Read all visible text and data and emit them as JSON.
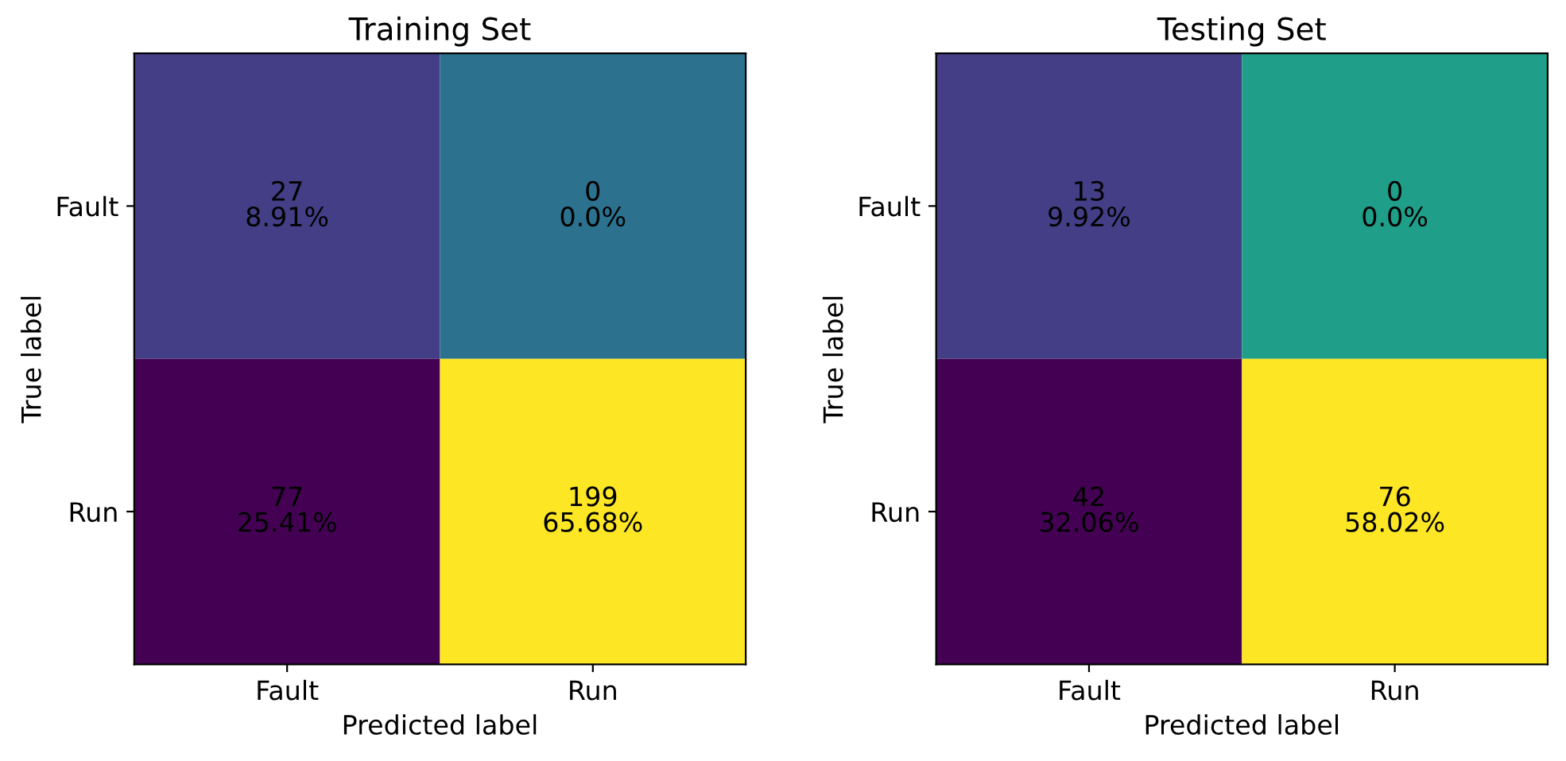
{
  "chart_data": [
    {
      "type": "heatmap",
      "title": "Training Set",
      "xlabel": "Predicted label",
      "ylabel": "True label",
      "categories": [
        "Fault",
        "Run"
      ],
      "y_categories": [
        "Fault",
        "Run"
      ],
      "cells": [
        [
          27,
          0
        ],
        [
          77,
          199
        ]
      ],
      "data_labels": true,
      "colors": [
        [
          "#433e85",
          "#2c728e"
        ],
        [
          "#440154",
          "#fde725"
        ]
      ],
      "annotations": [
        "8.91%",
        "0.0%",
        "25.41%",
        "65.68%"
      ]
    },
    {
      "type": "heatmap",
      "title": "Testing Set",
      "xlabel": "Predicted label",
      "ylabel": "True label",
      "categories": [
        "Fault",
        "Run"
      ],
      "y_categories": [
        "Fault",
        "Run"
      ],
      "cells": [
        [
          13,
          0
        ],
        [
          42,
          76
        ]
      ],
      "data_labels": true,
      "colors": [
        [
          "#433e85",
          "#1f9e89"
        ],
        [
          "#440154",
          "#fde725"
        ]
      ],
      "annotations": [
        "9.92%",
        "0.0%",
        "32.06%",
        "58.02%"
      ]
    }
  ]
}
